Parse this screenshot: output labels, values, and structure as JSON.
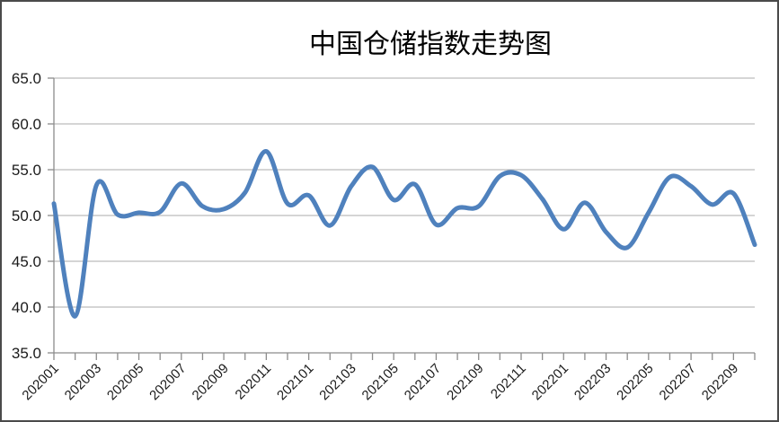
{
  "chart_data": {
    "type": "line",
    "title": "中国仓储指数走势图",
    "x": [
      "202001",
      "202002",
      "202003",
      "202004",
      "202005",
      "202006",
      "202007",
      "202008",
      "202009",
      "202010",
      "202011",
      "202012",
      "202101",
      "202102",
      "202103",
      "202104",
      "202105",
      "202106",
      "202107",
      "202108",
      "202109",
      "202110",
      "202111",
      "202112",
      "202201",
      "202202",
      "202203",
      "202204",
      "202205",
      "202206",
      "202207",
      "202208",
      "202209",
      "202210"
    ],
    "values": [
      51.3,
      39.0,
      53.3,
      50.1,
      50.3,
      50.4,
      53.5,
      51.0,
      50.7,
      52.5,
      57.0,
      51.3,
      52.2,
      48.9,
      53.2,
      55.3,
      51.7,
      53.4,
      49.0,
      50.8,
      51.0,
      54.3,
      54.4,
      51.8,
      48.5,
      51.4,
      48.2,
      46.5,
      50.3,
      54.2,
      53.2,
      51.2,
      52.4,
      46.8
    ],
    "x_label_every": 2,
    "y_ticks": [
      65.0,
      60.0,
      55.0,
      50.0,
      45.0,
      40.0,
      35.0
    ],
    "y_tick_labels": [
      "65.0",
      "60.0",
      "55.0",
      "50.0",
      "45.0",
      "40.0",
      "35.0"
    ],
    "ylim": [
      35.0,
      65.0
    ],
    "xlabel": "",
    "ylabel": "",
    "legend": "none",
    "grid": "horizontal",
    "smooth": true,
    "colors": {
      "line": "#4F81BD",
      "gridline": "#ABABAB",
      "axis": "#8C8C8C",
      "tick_text": "#1a1a1a",
      "title_text": "#000000"
    }
  }
}
